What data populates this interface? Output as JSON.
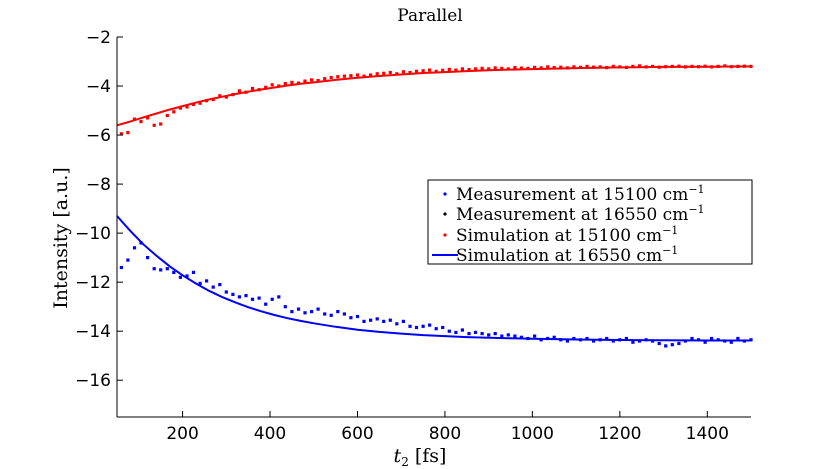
{
  "chart_data": {
    "type": "scatter",
    "title": "Parallel",
    "xlabel_var": "t",
    "xlabel_sub": "2",
    "xlabel_unit": "[fs]",
    "ylabel": "Intensity [a.u.]",
    "xlim": [
      50,
      1500
    ],
    "ylim": [
      -17.5,
      -2
    ],
    "xticks": [
      200,
      400,
      600,
      800,
      1000,
      1200,
      1400
    ],
    "yticks": [
      -16,
      -14,
      -12,
      -10,
      -8,
      -6,
      -4,
      -2
    ],
    "legend_position": "right-center",
    "series": [
      {
        "name": "Measurement at 15100 cm",
        "sup": "−1",
        "style": "markers",
        "color": "#0000ff"
      },
      {
        "name": "Measurement at 16550 cm",
        "sup": "−1",
        "style": "markers",
        "color": "#000000"
      },
      {
        "name": "Simulation at 15100 cm",
        "sup": "−1",
        "style": "markers",
        "color": "#ff0000"
      },
      {
        "name": "Simulation at 16550 cm",
        "sup": "−1",
        "style": "line",
        "color": "#0000ff"
      }
    ],
    "red_points": {
      "x": [
        60,
        75,
        90,
        105,
        120,
        135,
        150,
        165,
        180,
        195,
        210,
        225,
        240,
        255,
        270,
        285,
        300,
        315,
        330,
        345,
        360,
        375,
        390,
        405,
        420,
        435,
        450,
        465,
        480,
        495,
        510,
        525,
        540,
        555,
        570,
        585,
        600,
        615,
        630,
        645,
        660,
        675,
        690,
        705,
        720,
        735,
        750,
        765,
        780,
        795,
        810,
        825,
        840,
        855,
        870,
        885,
        900,
        915,
        930,
        945,
        960,
        975,
        990,
        1005,
        1020,
        1035,
        1050,
        1065,
        1080,
        1095,
        1110,
        1125,
        1140,
        1155,
        1170,
        1185,
        1200,
        1215,
        1230,
        1245,
        1260,
        1275,
        1290,
        1305,
        1320,
        1335,
        1350,
        1365,
        1380,
        1395,
        1410,
        1425,
        1440,
        1455,
        1470,
        1485,
        1500
      ],
      "y": [
        -5.95,
        -5.9,
        -5.35,
        -5.45,
        -5.3,
        -5.6,
        -5.55,
        -5.2,
        -5.05,
        -4.9,
        -4.85,
        -4.75,
        -4.7,
        -4.6,
        -4.55,
        -4.4,
        -4.45,
        -4.35,
        -4.2,
        -4.25,
        -4.1,
        -4.15,
        -4.05,
        -3.95,
        -4.0,
        -3.9,
        -3.85,
        -3.88,
        -3.8,
        -3.75,
        -3.78,
        -3.7,
        -3.65,
        -3.62,
        -3.6,
        -3.58,
        -3.55,
        -3.6,
        -3.55,
        -3.5,
        -3.48,
        -3.45,
        -3.5,
        -3.42,
        -3.45,
        -3.4,
        -3.38,
        -3.35,
        -3.4,
        -3.36,
        -3.32,
        -3.35,
        -3.3,
        -3.33,
        -3.3,
        -3.28,
        -3.3,
        -3.26,
        -3.28,
        -3.3,
        -3.25,
        -3.27,
        -3.28,
        -3.24,
        -3.26,
        -3.22,
        -3.25,
        -3.23,
        -3.26,
        -3.22,
        -3.24,
        -3.2,
        -3.23,
        -3.22,
        -3.25,
        -3.2,
        -3.22,
        -3.24,
        -3.2,
        -3.18,
        -3.22,
        -3.2,
        -3.23,
        -3.21,
        -3.2,
        -3.19,
        -3.22,
        -3.2,
        -3.21,
        -3.19,
        -3.22,
        -3.2,
        -3.18,
        -3.21,
        -3.2,
        -3.19,
        -3.2
      ]
    },
    "red_sim": {
      "x": [
        50,
        80,
        110,
        140,
        170,
        200,
        230,
        260,
        290,
        320,
        350,
        380,
        410,
        440,
        470,
        500,
        550,
        600,
        650,
        700,
        750,
        800,
        850,
        900,
        950,
        1000,
        1100,
        1200,
        1300,
        1400,
        1500
      ],
      "y": [
        -5.6,
        -5.45,
        -5.28,
        -5.12,
        -4.96,
        -4.82,
        -4.68,
        -4.55,
        -4.44,
        -4.33,
        -4.23,
        -4.14,
        -4.06,
        -3.98,
        -3.91,
        -3.85,
        -3.75,
        -3.66,
        -3.59,
        -3.53,
        -3.47,
        -3.43,
        -3.39,
        -3.36,
        -3.33,
        -3.31,
        -3.27,
        -3.24,
        -3.22,
        -3.21,
        -3.2
      ]
    },
    "blue_points": {
      "x": [
        60,
        75,
        90,
        105,
        120,
        135,
        150,
        165,
        180,
        195,
        210,
        225,
        240,
        255,
        270,
        285,
        300,
        315,
        330,
        345,
        360,
        375,
        390,
        405,
        420,
        435,
        450,
        465,
        480,
        495,
        510,
        525,
        540,
        555,
        570,
        585,
        600,
        615,
        630,
        645,
        660,
        675,
        690,
        705,
        720,
        735,
        750,
        765,
        780,
        795,
        810,
        825,
        840,
        855,
        870,
        885,
        900,
        915,
        930,
        945,
        960,
        975,
        990,
        1005,
        1020,
        1035,
        1050,
        1065,
        1080,
        1095,
        1110,
        1125,
        1140,
        1155,
        1170,
        1185,
        1200,
        1215,
        1230,
        1245,
        1260,
        1275,
        1290,
        1305,
        1320,
        1335,
        1350,
        1365,
        1380,
        1395,
        1410,
        1425,
        1440,
        1455,
        1470,
        1485,
        1500
      ],
      "y": [
        -11.4,
        -11.1,
        -10.6,
        -10.4,
        -11.0,
        -11.45,
        -11.5,
        -11.45,
        -11.6,
        -11.8,
        -11.75,
        -11.6,
        -12.05,
        -11.95,
        -12.2,
        -12.1,
        -12.4,
        -12.5,
        -12.6,
        -12.55,
        -12.7,
        -12.65,
        -12.9,
        -12.7,
        -12.6,
        -13.0,
        -13.2,
        -13.1,
        -13.25,
        -13.2,
        -13.1,
        -13.3,
        -13.35,
        -13.2,
        -13.3,
        -13.45,
        -13.4,
        -13.6,
        -13.55,
        -13.5,
        -13.6,
        -13.55,
        -13.7,
        -13.6,
        -13.8,
        -13.85,
        -13.8,
        -13.75,
        -13.9,
        -13.85,
        -14.0,
        -14.05,
        -13.95,
        -14.1,
        -14.05,
        -14.1,
        -14.15,
        -14.1,
        -14.2,
        -14.15,
        -14.2,
        -14.25,
        -14.3,
        -14.2,
        -14.35,
        -14.3,
        -14.25,
        -14.35,
        -14.4,
        -14.3,
        -14.35,
        -14.3,
        -14.4,
        -14.35,
        -14.3,
        -14.4,
        -14.35,
        -14.3,
        -14.45,
        -14.4,
        -14.35,
        -14.4,
        -14.5,
        -14.6,
        -14.55,
        -14.5,
        -14.4,
        -14.3,
        -14.35,
        -14.45,
        -14.3,
        -14.35,
        -14.4,
        -14.45,
        -14.3,
        -14.4,
        -14.35
      ]
    },
    "blue_sim": {
      "x": [
        50,
        80,
        110,
        140,
        170,
        200,
        230,
        260,
        290,
        320,
        350,
        380,
        410,
        440,
        470,
        500,
        550,
        600,
        650,
        700,
        750,
        800,
        850,
        900,
        950,
        1000,
        1100,
        1200,
        1300,
        1400,
        1500
      ],
      "y": [
        -9.3,
        -9.9,
        -10.45,
        -10.92,
        -11.35,
        -11.72,
        -12.05,
        -12.35,
        -12.6,
        -12.82,
        -13.02,
        -13.19,
        -13.34,
        -13.47,
        -13.58,
        -13.68,
        -13.82,
        -13.94,
        -14.03,
        -14.1,
        -14.16,
        -14.2,
        -14.24,
        -14.27,
        -14.29,
        -14.31,
        -14.34,
        -14.36,
        -14.37,
        -14.38,
        -14.38
      ]
    }
  }
}
